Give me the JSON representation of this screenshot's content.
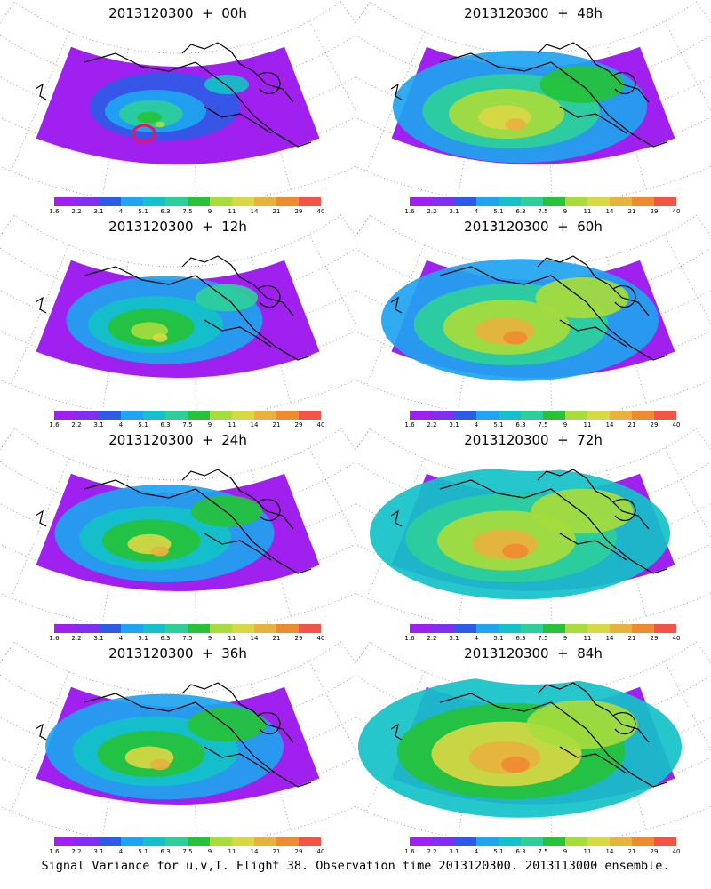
{
  "panels": [
    {
      "title": "2013120300  +  00h",
      "intensity": 0.1
    },
    {
      "title": "2013120300  +  48h",
      "intensity": 0.55
    },
    {
      "title": "2013120300  +  12h",
      "intensity": 0.3
    },
    {
      "title": "2013120300  +  60h",
      "intensity": 0.65
    },
    {
      "title": "2013120300  +  24h",
      "intensity": 0.4
    },
    {
      "title": "2013120300  +  72h",
      "intensity": 0.75
    },
    {
      "title": "2013120300  +  36h",
      "intensity": 0.48
    },
    {
      "title": "2013120300  +  84h",
      "intensity": 0.85
    }
  ],
  "colorbar": {
    "labels": [
      "1.6",
      "2.2",
      "3.1",
      "4",
      "5.1",
      "6.3",
      "7.5",
      "9",
      "11",
      "14",
      "21",
      "29",
      "40"
    ],
    "colors": [
      "#a020f0",
      "#7f2ff0",
      "#2e5be6",
      "#1ea4f0",
      "#12c2c8",
      "#2ccf9a",
      "#25c23a",
      "#a6dc3c",
      "#d8d844",
      "#e8b23e",
      "#f08a32",
      "#f05548"
    ]
  },
  "footer": "Signal Variance for u,v,T. Flight 38. Observation time 2013120300. 2013113000 ensemble."
}
